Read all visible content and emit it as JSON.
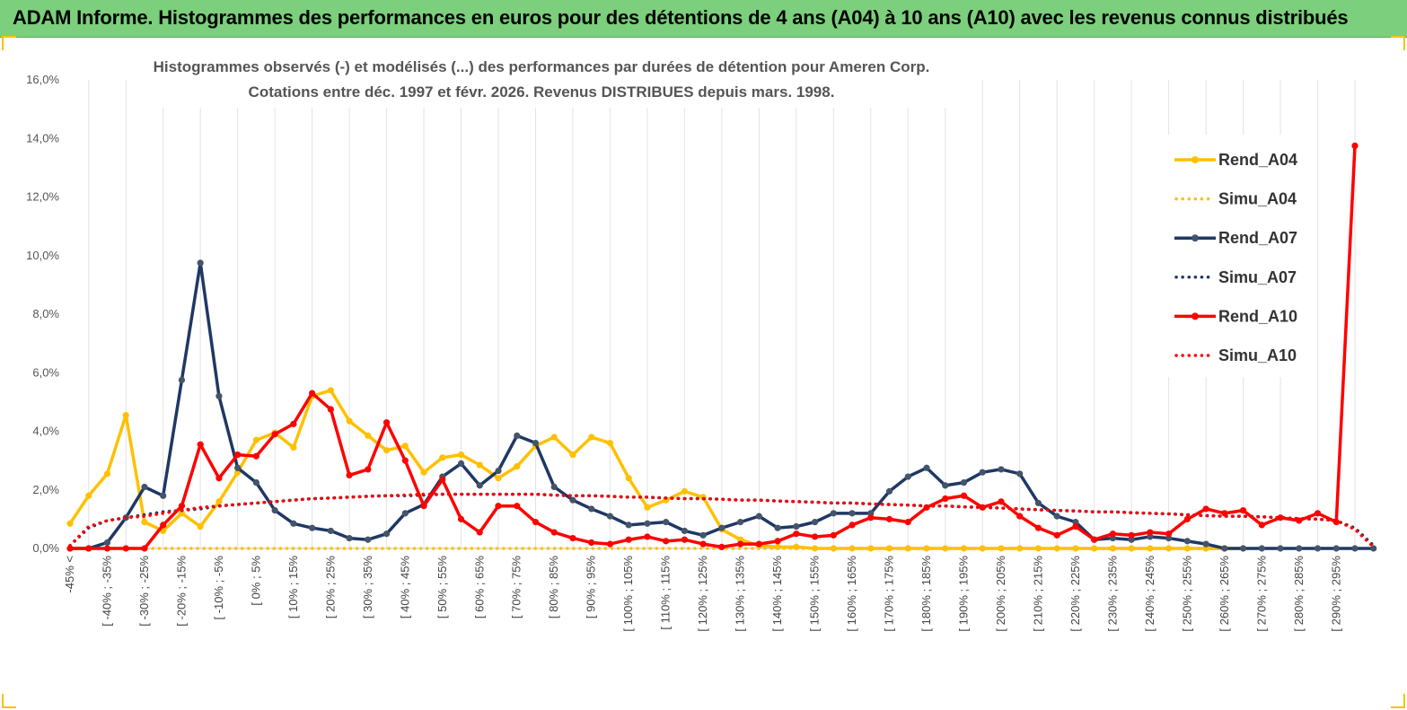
{
  "banner": {
    "title": "ADAM Informe. Histogrammes des performances en euros pour des détentions de 4 ans (A04) à 10 ans (A10) avec les revenus connus distribués"
  },
  "chart_data": {
    "type": "line",
    "title": "Histogrammes observés (-) et modélisés (...) des performances par durées de détention pour Ameren Corp.",
    "subtitle": "Cotations entre déc. 1997 et févr. 2026. Revenus DISTRIBUES depuis mars. 1998.",
    "ylim": [
      0,
      16
    ],
    "yticks": [
      "0,0%",
      "2,0%",
      "4,0%",
      "6,0%",
      "8,0%",
      "10,0%",
      "12,0%",
      "14,0%",
      "16,0%"
    ],
    "grid": "vertical",
    "legend_position": "right",
    "x_labels": [
      "-45% <",
      "[ -40% ; -35%",
      "[ -30% ; -25%",
      "[ -20% ; -15%",
      "[ -10% ; -5%",
      "[ 0% ; 5%",
      "[ 10% ; 15%",
      "[ 20% ; 25%",
      "[ 30% ; 35%",
      "[ 40% ; 45%",
      "[ 50% ; 55%",
      "[ 60% ; 65%",
      "[ 70% ; 75%",
      "[ 80% ; 85%",
      "[ 90% ; 95%",
      "[ 100% ; 105%",
      "[ 110% ; 115%",
      "[ 120% ; 125%",
      "[ 130% ; 135%",
      "[ 140% ; 145%",
      "[ 150% ; 155%",
      "[ 160% ; 165%",
      "[ 170% ; 175%",
      "[ 180% ; 185%",
      "[ 190% ; 195%",
      "[ 200% ; 205%",
      "[ 210% ; 215%",
      "[ 220% ; 225%",
      "[ 230% ; 235%",
      "[ 240% ; 245%",
      "[ 250% ; 255%",
      "[ 260% ; 265%",
      "[ 270% ; 275%",
      "[ 280% ; 285%",
      "[ 290% ; 295%"
    ],
    "series": [
      {
        "name": "Rend_A04",
        "color": "#ffc000",
        "style": "solid",
        "values": [
          0.85,
          1.8,
          2.55,
          4.55,
          0.9,
          0.6,
          1.2,
          0.75,
          1.6,
          2.6,
          3.7,
          3.95,
          3.45,
          5.2,
          5.4,
          4.35,
          3.85,
          3.35,
          3.5,
          2.6,
          3.1,
          3.2,
          2.85,
          2.4,
          2.8,
          3.5,
          3.8,
          3.2,
          3.8,
          3.6,
          2.4,
          1.4,
          1.65,
          1.95,
          1.75,
          0.65,
          0.3,
          0.1,
          0.05,
          0.05,
          0,
          0,
          0,
          0,
          0,
          0,
          0,
          0,
          0,
          0,
          0,
          0,
          0,
          0,
          0,
          0,
          0,
          0,
          0,
          0,
          0,
          0,
          0,
          0
        ]
      },
      {
        "name": "Simu_A04",
        "color": "#ffc000",
        "style": "dotted",
        "values": [
          0,
          0,
          0,
          0,
          0,
          0,
          0,
          0,
          0,
          0,
          0,
          0,
          0,
          0,
          0,
          0,
          0,
          0,
          0,
          0,
          0,
          0,
          0,
          0,
          0,
          0,
          0,
          0,
          0,
          0,
          0,
          0,
          0,
          0,
          0,
          0,
          0,
          0,
          0,
          0,
          0,
          0,
          0,
          0,
          0,
          0,
          0,
          0,
          0,
          0,
          0,
          0,
          0,
          0,
          0,
          0,
          0,
          0,
          0,
          0,
          0,
          0,
          0,
          0
        ]
      },
      {
        "name": "Rend_A07",
        "color": "#1f3864",
        "style": "solid",
        "values": [
          0,
          0,
          0.2,
          1.05,
          2.1,
          1.8,
          5.75,
          9.75,
          5.2,
          2.75,
          2.25,
          1.3,
          0.85,
          0.7,
          0.6,
          0.35,
          0.3,
          0.5,
          1.2,
          1.5,
          2.45,
          2.9,
          2.15,
          2.65,
          3.85,
          3.6,
          2.1,
          1.65,
          1.35,
          1.1,
          0.8,
          0.85,
          0.9,
          0.6,
          0.45,
          0.7,
          0.9,
          1.1,
          0.7,
          0.75,
          0.9,
          1.2,
          1.2,
          1.2,
          1.95,
          2.45,
          2.75,
          2.15,
          2.25,
          2.6,
          2.7,
          2.55,
          1.55,
          1.1,
          0.9,
          0.3,
          0.35,
          0.3,
          0.4,
          0.35,
          0.25,
          0.15,
          0,
          0,
          0,
          0,
          0,
          0,
          0,
          0,
          0
        ]
      },
      {
        "name": "Simu_A07",
        "color": "#1f3864",
        "style": "dotted",
        "values": [
          0.1,
          0.7,
          0.95,
          1.05,
          1.15,
          1.25,
          1.3,
          1.35,
          1.45,
          1.5,
          1.55,
          1.6,
          1.65,
          1.7,
          1.72,
          1.75,
          1.78,
          1.8,
          1.8,
          1.82,
          1.85,
          1.85,
          1.85,
          1.85,
          1.85,
          1.85,
          1.82,
          1.8,
          1.8,
          1.78,
          1.75,
          1.75,
          1.72,
          1.7,
          1.7,
          1.68,
          1.65,
          1.65,
          1.62,
          1.6,
          1.58,
          1.55,
          1.55,
          1.52,
          1.5,
          1.48,
          1.45,
          1.45,
          1.42,
          1.4,
          1.38,
          1.35,
          1.32,
          1.3,
          1.28,
          1.25,
          1.25,
          1.22,
          1.2,
          1.18,
          1.15,
          1.12,
          1.1,
          1.1,
          1.08,
          1.05,
          1.02,
          1.0,
          0.95,
          0.7,
          0.1
        ]
      },
      {
        "name": "Rend_A10",
        "color": "#ff0000",
        "style": "solid",
        "values": [
          0,
          0,
          0,
          0,
          0,
          0.8,
          1.45,
          3.55,
          2.4,
          3.2,
          3.15,
          3.9,
          4.25,
          5.3,
          4.75,
          2.5,
          2.7,
          4.3,
          3.0,
          1.45,
          2.35,
          1.0,
          0.55,
          1.45,
          1.45,
          0.9,
          0.55,
          0.35,
          0.2,
          0.15,
          0.3,
          0.4,
          0.25,
          0.3,
          0.15,
          0.05,
          0.15,
          0.15,
          0.25,
          0.5,
          0.4,
          0.45,
          0.8,
          1.05,
          1.0,
          0.9,
          1.4,
          1.7,
          1.8,
          1.4,
          1.6,
          1.1,
          0.7,
          0.45,
          0.75,
          0.3,
          0.5,
          0.45,
          0.55,
          0.5,
          1.0,
          1.35,
          1.2,
          1.3,
          0.8,
          1.05,
          0.95,
          1.2,
          0.9,
          13.75
        ]
      },
      {
        "name": "Simu_A10",
        "color": "#ff0000",
        "style": "dotted",
        "values": [
          0.1,
          0.75,
          0.95,
          1.05,
          1.1,
          1.2,
          1.3,
          1.4,
          1.45,
          1.5,
          1.55,
          1.6,
          1.65,
          1.7,
          1.72,
          1.75,
          1.78,
          1.8,
          1.82,
          1.85,
          1.85,
          1.85,
          1.85,
          1.85,
          1.85,
          1.85,
          1.82,
          1.8,
          1.8,
          1.78,
          1.75,
          1.75,
          1.72,
          1.7,
          1.7,
          1.68,
          1.65,
          1.65,
          1.62,
          1.6,
          1.58,
          1.55,
          1.55,
          1.52,
          1.5,
          1.48,
          1.45,
          1.45,
          1.42,
          1.4,
          1.38,
          1.35,
          1.32,
          1.3,
          1.28,
          1.25,
          1.25,
          1.22,
          1.2,
          1.18,
          1.15,
          1.12,
          1.1,
          1.1,
          1.08,
          1.05,
          1.02,
          1.0,
          0.95,
          0.65,
          0.05
        ]
      }
    ]
  }
}
